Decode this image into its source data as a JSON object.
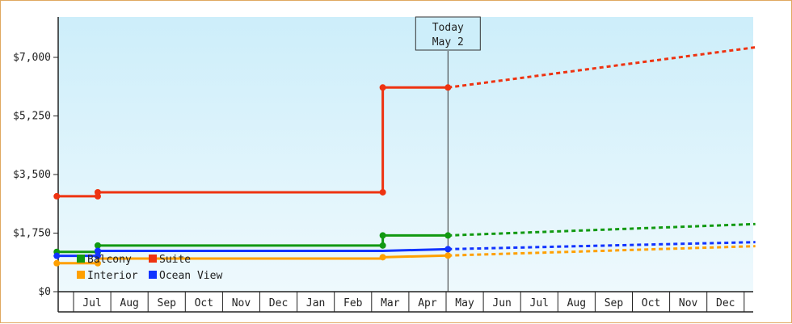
{
  "chart_data": {
    "type": "line",
    "x_type": "month",
    "months": [
      "Jul",
      "Aug",
      "Sep",
      "Oct",
      "Nov",
      "Dec",
      "Jan",
      "Feb",
      "Mar",
      "Apr",
      "May",
      "Jun",
      "Jul",
      "Aug",
      "Sep",
      "Oct",
      "Nov",
      "Dec"
    ],
    "yticks": [
      0,
      1750,
      3500,
      5250,
      7000
    ],
    "ytick_labels": [
      "$0",
      "$1,750",
      "$3,500",
      "$5,250",
      "$7,000"
    ],
    "ylim": [
      0,
      7000
    ],
    "today": {
      "line1": "Today",
      "line2": "May 2",
      "x": 10.05
    },
    "grid": false,
    "series": [
      {
        "name": "Balcony",
        "color": "#119911",
        "history": [
          [
            -0.45,
            1190
          ],
          [
            0.65,
            1190
          ],
          [
            0.65,
            1380
          ],
          [
            8.3,
            1380
          ],
          [
            8.3,
            1680
          ],
          [
            10.05,
            1680
          ]
        ],
        "forecast": [
          [
            10.05,
            1680
          ],
          [
            18.3,
            2020
          ]
        ]
      },
      {
        "name": "Suite",
        "color": "#ee3311",
        "history": [
          [
            -0.45,
            2850
          ],
          [
            0.65,
            2850
          ],
          [
            0.65,
            2970
          ],
          [
            8.3,
            2970
          ],
          [
            8.3,
            6100
          ],
          [
            10.05,
            6100
          ]
        ],
        "forecast": [
          [
            10.05,
            6100
          ],
          [
            18.3,
            7300
          ]
        ]
      },
      {
        "name": "Interior",
        "color": "#ffa000",
        "history": [
          [
            -0.45,
            850
          ],
          [
            0.65,
            850
          ],
          [
            0.65,
            990
          ],
          [
            8.3,
            990
          ],
          [
            8.3,
            1030
          ],
          [
            10.05,
            1080
          ]
        ],
        "forecast": [
          [
            10.05,
            1080
          ],
          [
            18.3,
            1360
          ]
        ]
      },
      {
        "name": "Ocean View",
        "color": "#1133ff",
        "history": [
          [
            -0.45,
            1070
          ],
          [
            0.65,
            1070
          ],
          [
            0.65,
            1220
          ],
          [
            8.3,
            1220
          ],
          [
            8.3,
            1220
          ],
          [
            10.05,
            1270
          ]
        ],
        "forecast": [
          [
            10.05,
            1270
          ],
          [
            18.3,
            1480
          ]
        ]
      }
    ],
    "markers": [
      {
        "series": 0,
        "points": [
          [
            -0.45,
            1190
          ],
          [
            0.65,
            1190
          ],
          [
            0.65,
            1380
          ],
          [
            8.3,
            1380
          ],
          [
            8.3,
            1680
          ],
          [
            10.05,
            1680
          ]
        ]
      },
      {
        "series": 1,
        "points": [
          [
            -0.45,
            2850
          ],
          [
            0.65,
            2850
          ],
          [
            0.65,
            2970
          ],
          [
            8.3,
            2970
          ],
          [
            8.3,
            6100
          ],
          [
            10.05,
            6100
          ]
        ]
      },
      {
        "series": 2,
        "points": [
          [
            -0.45,
            850
          ],
          [
            0.65,
            850
          ],
          [
            8.3,
            1030
          ],
          [
            10.05,
            1080
          ]
        ]
      },
      {
        "series": 3,
        "points": [
          [
            -0.45,
            1070
          ],
          [
            0.65,
            1070
          ],
          [
            0.65,
            1220
          ],
          [
            10.05,
            1270
          ]
        ]
      }
    ],
    "legend": {
      "placement": "bottom-left"
    }
  }
}
